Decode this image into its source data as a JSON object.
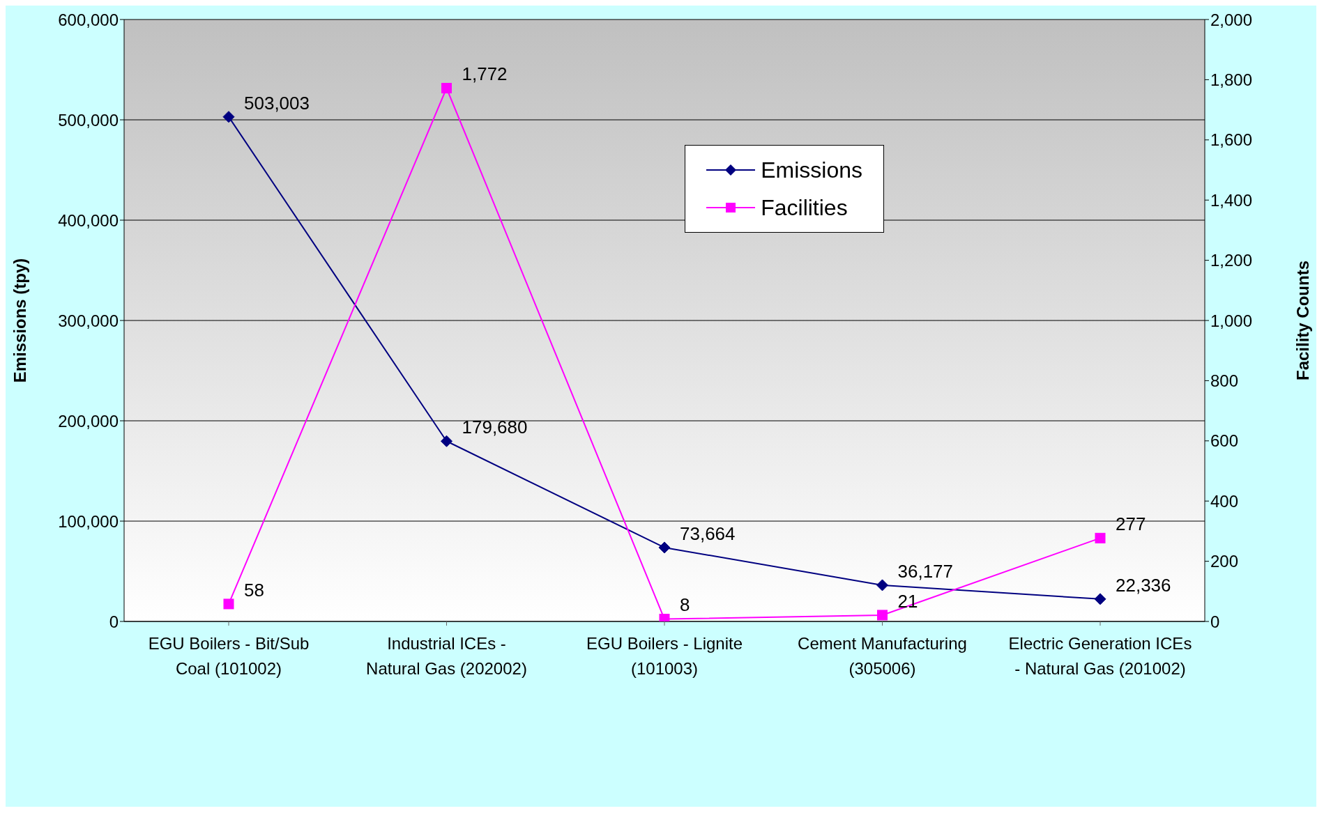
{
  "chart_data": {
    "type": "line",
    "ylabel": "Emissions (tpy)",
    "y2label": "Facility Counts",
    "categories": [
      "EGU Boilers - Bit/Sub Coal (101002)",
      "Industrial ICEs - Natural Gas (202002)",
      "EGU Boilers - Lignite (101003)",
      "Cement Manufacturing (305006)",
      "Electric Generation ICEs - Natural Gas (201002)"
    ],
    "series": [
      {
        "name": "Emissions",
        "color": "#000080",
        "marker": "diamond",
        "values": [
          503003,
          179680,
          73664,
          36177,
          22336
        ],
        "value_labels": [
          "503,003",
          "179,680",
          "73,664",
          "36,177",
          "22,336"
        ]
      },
      {
        "name": "Facilities",
        "color": "#ff00ff",
        "marker": "square",
        "axis": "y2",
        "values": [
          58,
          1772,
          8,
          21,
          277
        ],
        "value_labels": [
          "58",
          "1,772",
          "8",
          "21",
          "277"
        ]
      }
    ],
    "ylim": [
      0,
      600000
    ],
    "yticks": [
      0,
      {
        "value": 100000,
        "label": "100,000"
      },
      {
        "value": 200000,
        "label": "200,000"
      },
      {
        "value": 300000,
        "label": "300,000"
      },
      {
        "value": 400000,
        "label": "400,000"
      },
      {
        "value": 500000,
        "label": "500,000"
      },
      {
        "value": 600000,
        "label": "600,000"
      }
    ],
    "y2lim": [
      0,
      2000
    ],
    "y2ticks": [
      0,
      200,
      400,
      600,
      800,
      {
        "value": 1000,
        "label": "1,000"
      },
      {
        "value": 1200,
        "label": "1,200"
      },
      {
        "value": 1400,
        "label": "1,400"
      },
      {
        "value": 1600,
        "label": "1,600"
      },
      {
        "value": 1800,
        "label": "1,800"
      },
      {
        "value": 2000,
        "label": "2,000"
      }
    ],
    "grid": "y",
    "legend": "top right"
  }
}
